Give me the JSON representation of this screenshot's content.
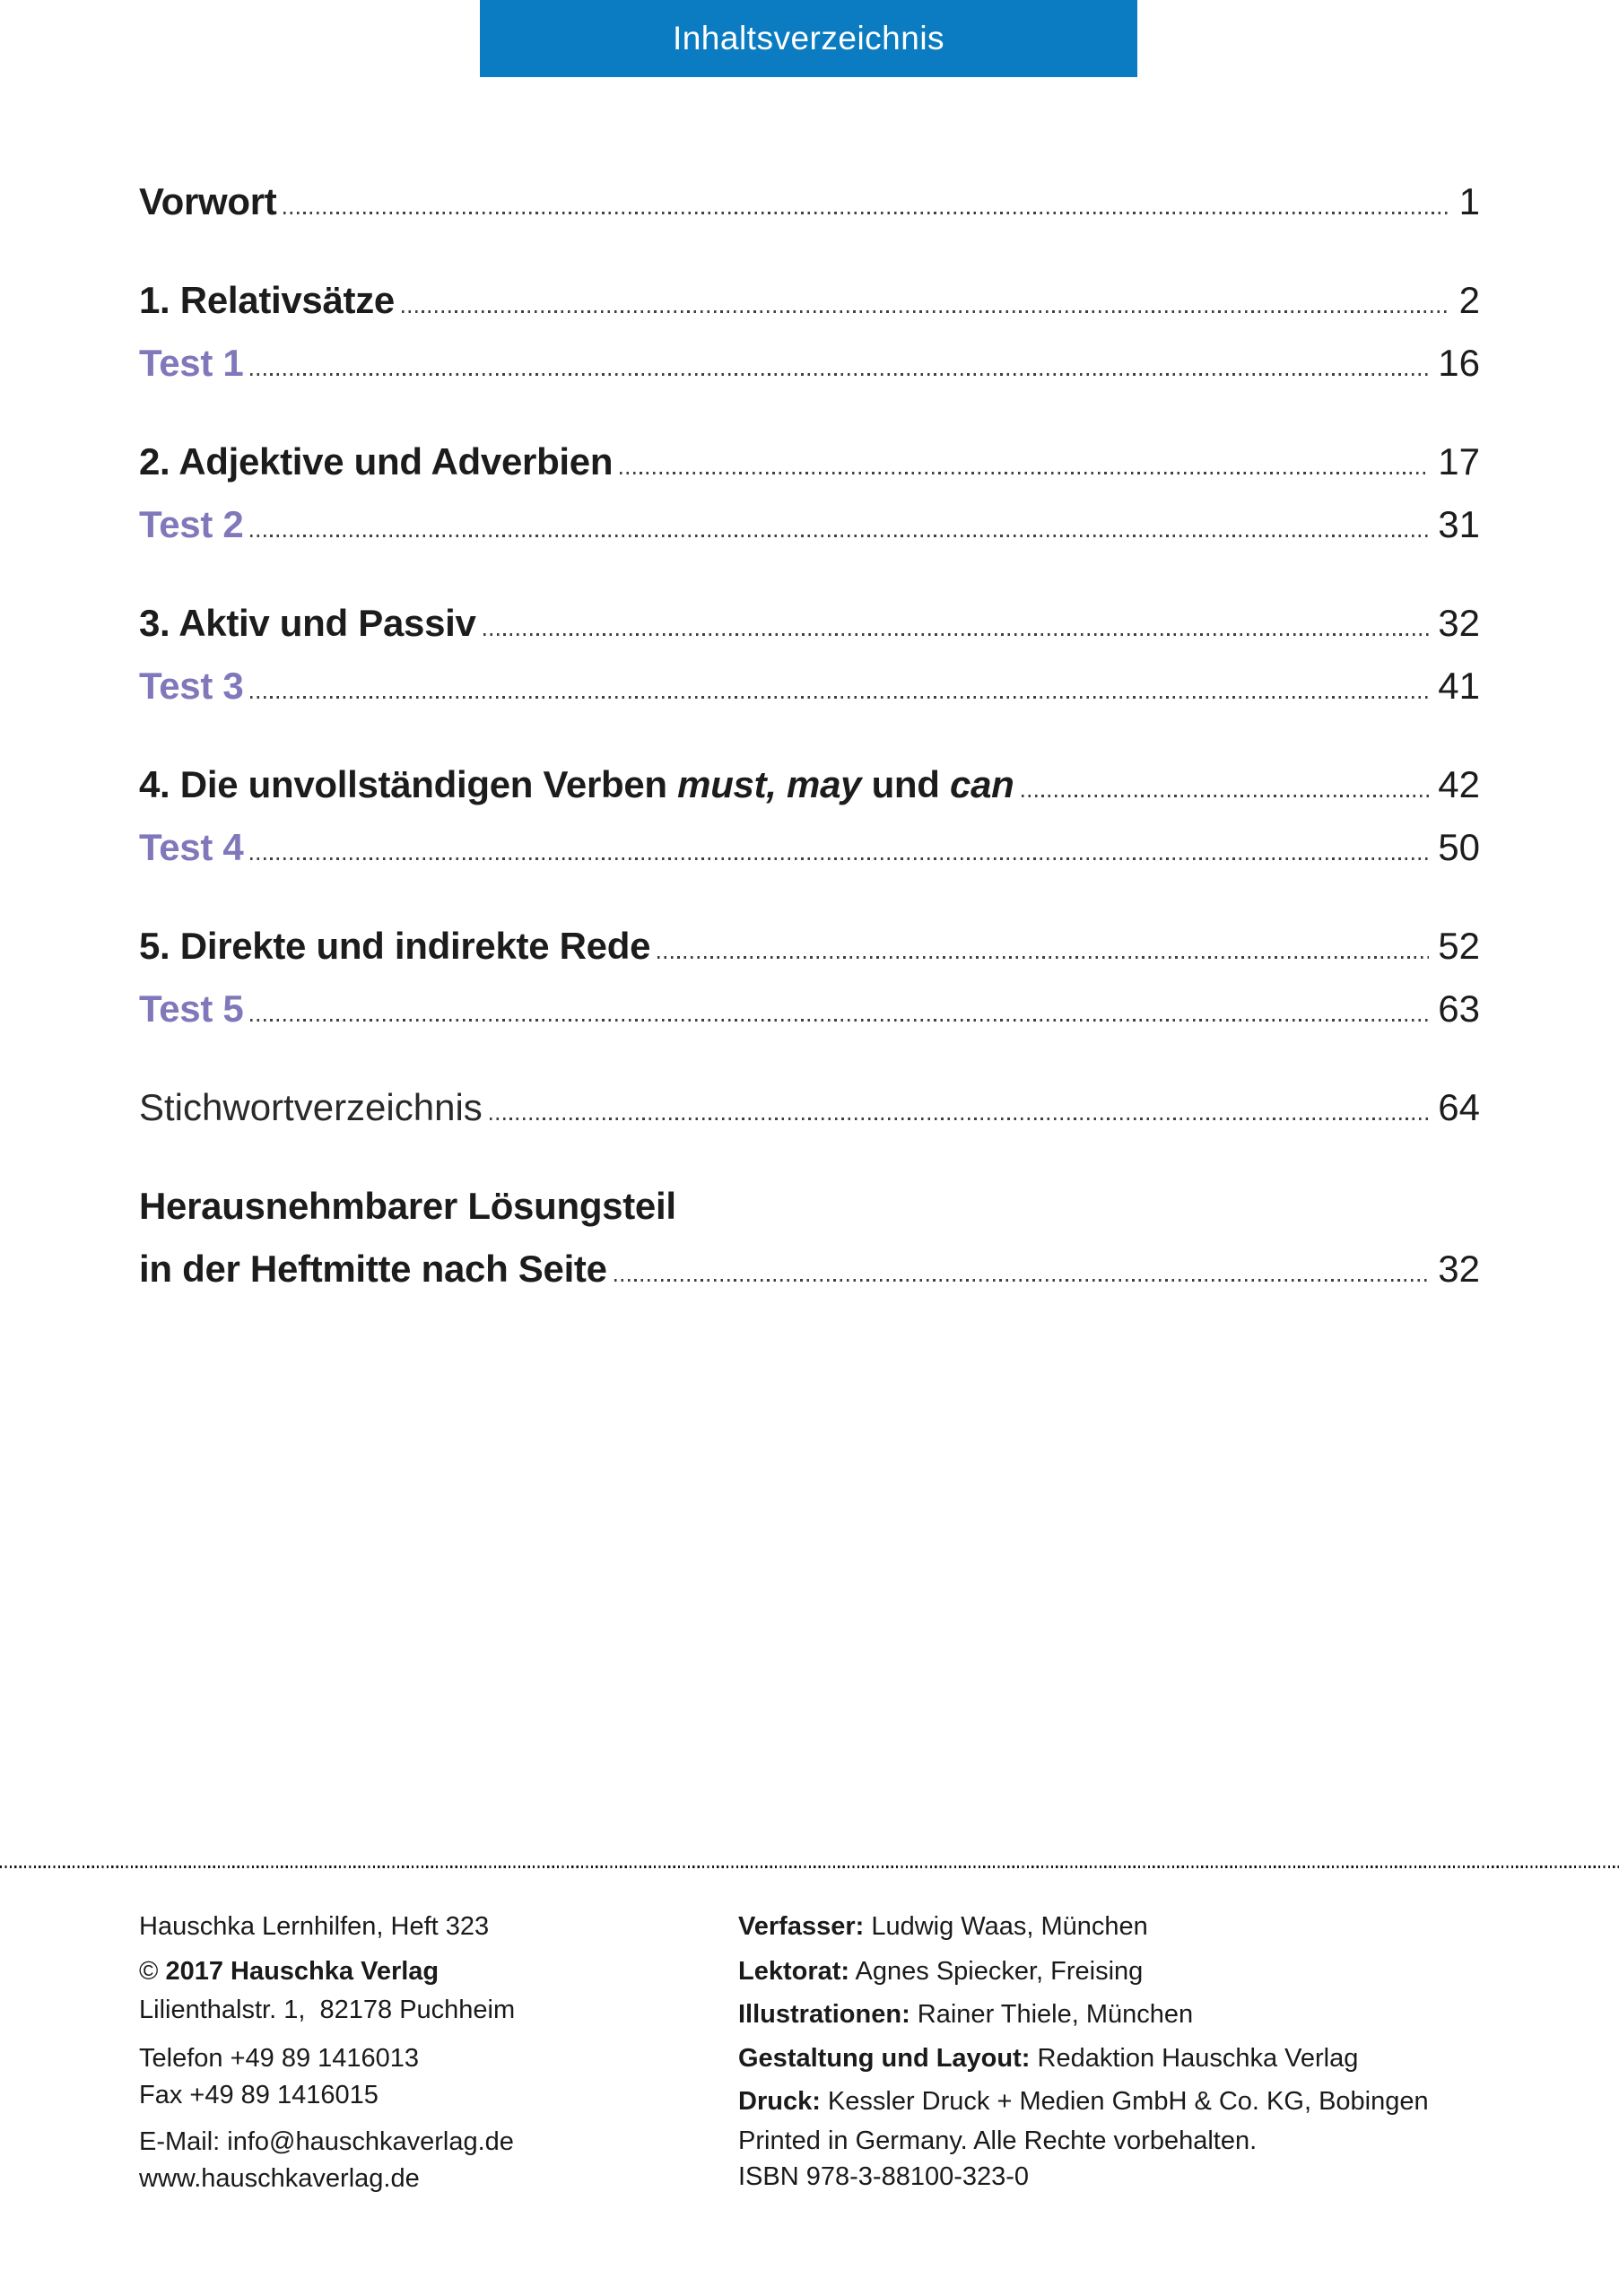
{
  "colors": {
    "header_bg": "#0b7cc1",
    "test_entry_color": "#8078ba",
    "text_color": "#1c1c1c"
  },
  "header": {
    "title": "Inhaltsverzeichnis"
  },
  "toc": {
    "groups": [
      {
        "rows": [
          {
            "kind": "chapter",
            "text": "Vorwort",
            "page": "1"
          }
        ]
      },
      {
        "rows": [
          {
            "kind": "chapter",
            "text": "1. Relativsätze",
            "page": "2"
          },
          {
            "kind": "test",
            "text": "Test 1",
            "page": "16"
          }
        ]
      },
      {
        "rows": [
          {
            "kind": "chapter",
            "text": "2. Adjektive und Adverbien",
            "page": "17"
          },
          {
            "kind": "test",
            "text": "Test 2",
            "page": "31"
          }
        ]
      },
      {
        "rows": [
          {
            "kind": "chapter",
            "text": "3. Aktiv und Passiv",
            "page": "32"
          },
          {
            "kind": "test",
            "text": "Test 3",
            "page": "41"
          }
        ]
      },
      {
        "rows": [
          {
            "kind": "chapter",
            "segments": [
              {
                "text": "4. Die unvollständigen Verben "
              },
              {
                "text": "must, may",
                "italic": true
              },
              {
                "text": " und "
              },
              {
                "text": "can",
                "italic": true
              }
            ],
            "page": "42"
          },
          {
            "kind": "test",
            "text": "Test 4",
            "page": "50"
          }
        ]
      },
      {
        "rows": [
          {
            "kind": "chapter",
            "text": "5. Direkte und indirekte Rede",
            "page": "52"
          },
          {
            "kind": "test",
            "text": "Test 5",
            "page": "63"
          }
        ]
      },
      {
        "rows": [
          {
            "kind": "plain",
            "text": "Stichwortverzeichnis",
            "page": "64"
          }
        ]
      },
      {
        "rows": [
          {
            "kind": "chapter",
            "text": "Herausnehmbarer Lösungsteil",
            "no_leader": true
          },
          {
            "kind": "chapter",
            "text": "in der Heftmitte nach Seite",
            "page": "32"
          }
        ]
      }
    ]
  },
  "footer": {
    "left": {
      "lines": [
        {
          "text": "Hauschka Lernhilfen, Heft 323"
        },
        {
          "pre": "© ",
          "bold": "2017 Hauschka Verlag"
        },
        {
          "text": "Lilienthalstr. 1,  82178 Puchheim"
        },
        {
          "text": "Telefon +49 89 1416013"
        },
        {
          "text": "Fax +49 89 1416015"
        },
        {
          "text": "E-Mail: info@hauschkaverlag.de"
        },
        {
          "text": "www.hauschkaverlag.de"
        }
      ]
    },
    "right": {
      "lines": [
        {
          "bold": "Verfasser:",
          "text": " Ludwig Waas, München"
        },
        {
          "bold": "Lektorat:",
          "text": " Agnes Spiecker, Freising"
        },
        {
          "bold": "Illustrationen:",
          "text": " Rainer Thiele, München"
        },
        {
          "bold": "Gestaltung und Layout:",
          "text": " Redaktion Hauschka Verlag"
        },
        {
          "bold": "Druck:",
          "text": " Kessler Druck + Medien GmbH & Co. KG, Bobingen"
        },
        {
          "text": "Printed in Germany. Alle Rechte vorbehalten."
        },
        {
          "text": "ISBN 978-3-88100-323-0"
        }
      ]
    }
  }
}
